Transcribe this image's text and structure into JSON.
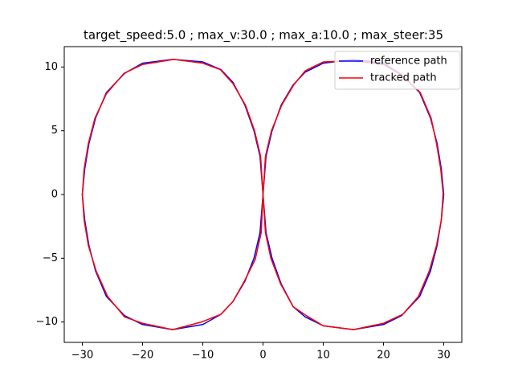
{
  "chart_data": {
    "type": "line",
    "title": "target_speed:5.0 ; max_v:30.0 ; max_a:10.0 ; max_steer:35",
    "xlim": [
      -33,
      33
    ],
    "ylim": [
      -11.6,
      11.6
    ],
    "xticks": [
      {
        "value": -30,
        "label": "−30"
      },
      {
        "value": -20,
        "label": "−20"
      },
      {
        "value": -10,
        "label": "−10"
      },
      0,
      10,
      20,
      30
    ],
    "yticks": [
      {
        "value": -10,
        "label": "−10"
      },
      {
        "value": -5,
        "label": "−5"
      },
      0,
      5,
      10
    ],
    "legend": "upper right",
    "series": [
      {
        "name": "reference path",
        "color": "#0000ff",
        "x": [
          0,
          -0.5,
          -1.5,
          -3,
          -5,
          -7,
          -10,
          -15,
          -20,
          -23,
          -26,
          -27.8,
          -28.9,
          -29.6,
          -30,
          -29.6,
          -28.9,
          -27.8,
          -26,
          -23,
          -20,
          -15,
          -10,
          -7,
          -5,
          -3,
          -1.5,
          -0.5,
          0,
          0.5,
          1.5,
          3,
          5,
          7,
          10,
          15,
          20,
          23,
          26,
          27.8,
          28.9,
          29.6,
          30,
          29.6,
          28.9,
          27.8,
          26,
          23,
          20,
          15,
          10,
          7,
          5,
          3,
          1.5,
          0.5,
          0
        ],
        "y": [
          0,
          3,
          5,
          7,
          8.8,
          9.8,
          10.4,
          10.6,
          10.3,
          9.5,
          8,
          6,
          4,
          2,
          0,
          -2,
          -4,
          -6,
          -8,
          -9.5,
          -10.2,
          -10.6,
          -10.2,
          -9.4,
          -8.4,
          -6.8,
          -5,
          -3,
          0,
          3,
          5,
          7,
          8.6,
          9.6,
          10.3,
          10.6,
          10.3,
          9.4,
          8,
          6,
          4,
          2,
          0,
          -2,
          -4,
          -6,
          -8,
          -9.5,
          -10.2,
          -10.6,
          -10.3,
          -9.6,
          -8.8,
          -7,
          -5,
          -3,
          0
        ]
      },
      {
        "name": "tracked path",
        "color": "#ff0000",
        "x": [
          0,
          -0.4,
          -1.4,
          -2.9,
          -5,
          -7.1,
          -10,
          -14.8,
          -20,
          -23.1,
          -26,
          -27.9,
          -29,
          -29.7,
          -30,
          -29.7,
          -29,
          -27.7,
          -25.8,
          -23,
          -20,
          -15,
          -10.2,
          -7,
          -5,
          -3.1,
          -1.3,
          -0.3,
          0,
          0.4,
          1.4,
          3.1,
          5.1,
          7,
          10,
          15,
          20,
          23.2,
          26.1,
          27.9,
          28.8,
          29.5,
          29.9,
          29.6,
          28.8,
          27.6,
          25.8,
          23.2,
          20,
          15,
          10,
          7.2,
          5,
          2.9,
          1.3,
          0.4,
          0
        ],
        "y": [
          0,
          3,
          5,
          7,
          8.7,
          9.8,
          10.3,
          10.6,
          10.2,
          9.5,
          7.9,
          6,
          4,
          2,
          0,
          -2,
          -4,
          -6,
          -8,
          -9.6,
          -10.1,
          -10.6,
          -10,
          -9.4,
          -8.4,
          -6.8,
          -5.1,
          -3,
          0,
          3,
          5,
          7,
          8.6,
          9.7,
          10.4,
          10.5,
          10.2,
          9.3,
          8,
          6,
          4,
          2,
          0.1,
          -2,
          -4,
          -6,
          -8,
          -9.4,
          -10.1,
          -10.6,
          -10.3,
          -9.5,
          -8.8,
          -7,
          -5,
          -3,
          0
        ]
      }
    ]
  }
}
